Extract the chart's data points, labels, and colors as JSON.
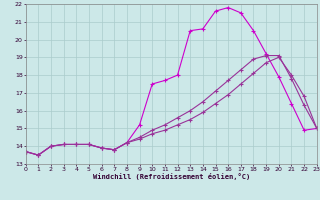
{
  "xlabel": "Windchill (Refroidissement éolien,°C)",
  "background_color": "#cce8e8",
  "grid_color": "#aacccc",
  "line1_color": "#cc00cc",
  "line2_color": "#993399",
  "line3_color": "#993399",
  "xmin": 0,
  "xmax": 23,
  "ymin": 13,
  "ymax": 22,
  "line1_x": [
    0,
    1,
    2,
    3,
    4,
    5,
    6,
    7,
    8,
    9,
    10,
    11,
    12,
    13,
    14,
    15,
    16,
    17,
    18,
    19,
    20,
    21,
    22,
    23
  ],
  "line1_y": [
    13.7,
    13.5,
    14.0,
    14.1,
    14.1,
    14.1,
    13.9,
    13.8,
    14.2,
    15.2,
    17.5,
    17.7,
    18.0,
    20.5,
    20.6,
    21.6,
    21.8,
    21.5,
    20.5,
    19.2,
    17.9,
    16.4,
    14.9,
    15.0
  ],
  "line2_x": [
    0,
    1,
    2,
    3,
    4,
    5,
    6,
    7,
    8,
    9,
    10,
    11,
    12,
    13,
    14,
    15,
    16,
    17,
    18,
    19,
    20,
    21,
    22,
    23
  ],
  "line2_y": [
    13.7,
    13.5,
    14.0,
    14.1,
    14.1,
    14.1,
    13.9,
    13.8,
    14.2,
    14.5,
    14.9,
    15.2,
    15.6,
    16.0,
    16.5,
    17.1,
    17.7,
    18.3,
    18.9,
    19.1,
    19.1,
    17.8,
    16.3,
    15.0
  ],
  "line3_x": [
    0,
    1,
    2,
    3,
    4,
    5,
    6,
    7,
    8,
    9,
    10,
    11,
    12,
    13,
    14,
    15,
    16,
    17,
    18,
    19,
    20,
    21,
    22,
    23
  ],
  "line3_y": [
    13.7,
    13.5,
    14.0,
    14.1,
    14.1,
    14.1,
    13.9,
    13.8,
    14.2,
    14.4,
    14.7,
    14.9,
    15.2,
    15.5,
    15.9,
    16.4,
    16.9,
    17.5,
    18.1,
    18.7,
    19.0,
    18.0,
    16.8,
    15.0
  ]
}
